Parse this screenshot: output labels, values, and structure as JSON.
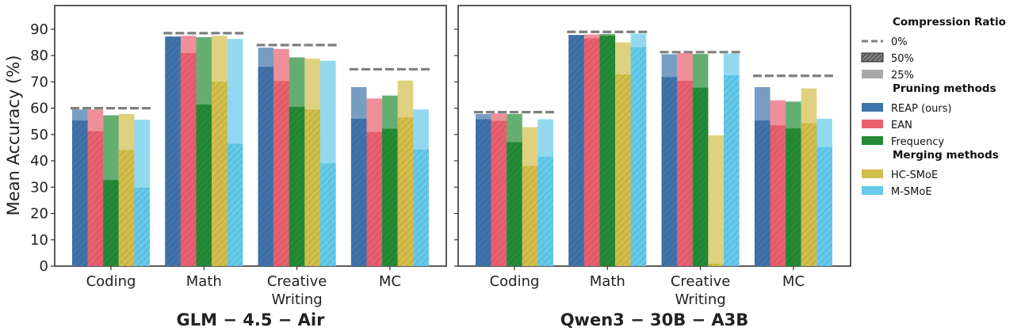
{
  "chart_data": {
    "type": "bar",
    "ylabel": "Mean Accuracy (%)",
    "ylim": [
      0,
      99
    ],
    "yticks": [
      0,
      10,
      20,
      30,
      40,
      50,
      60,
      70,
      80,
      90
    ],
    "categories": [
      "Coding",
      "Math",
      "Creative Writing",
      "MC"
    ],
    "category_lines": [
      [
        "Coding"
      ],
      [
        "Math"
      ],
      [
        "Creative",
        "Writing"
      ],
      [
        "MC"
      ]
    ],
    "methods": [
      {
        "name": "REAP (ours)",
        "color": "#3f73aa"
      },
      {
        "name": "EAN",
        "color": "#e8606f"
      },
      {
        "name": "Frequency",
        "color": "#238b36"
      },
      {
        "name": "HC-SMoE",
        "color": "#d2be4a"
      },
      {
        "name": "M-SMoE",
        "color": "#64c9ea"
      }
    ],
    "panels": [
      {
        "title": "GLM − 4.5 − Air",
        "baseline_0pct": [
          60,
          88.5,
          84,
          74.8
        ],
        "ratio_25pct": [
          [
            59.5,
            59.5,
            57.3,
            57.8,
            55.6
          ],
          [
            87.2,
            87.5,
            87.0,
            87.5,
            86.3
          ],
          [
            83.0,
            82.5,
            79.3,
            78.8,
            78.0
          ],
          [
            68.0,
            63.7,
            64.8,
            70.5,
            59.5
          ]
        ],
        "ratio_50pct": [
          [
            55.3,
            51.3,
            32.7,
            44.1,
            29.8
          ],
          [
            87.2,
            80.9,
            61.4,
            70.0,
            46.5
          ],
          [
            75.7,
            70.3,
            60.5,
            59.5,
            39.0
          ],
          [
            56.0,
            51.0,
            52.2,
            56.5,
            44.3
          ]
        ]
      },
      {
        "title": "Qwen3 − 30B − A3B",
        "baseline_0pct": [
          58.5,
          89,
          81.3,
          72.3
        ],
        "ratio_25pct": [
          [
            57.8,
            58.0,
            57.8,
            52.8,
            55.8
          ],
          [
            87.8,
            88.0,
            88.2,
            85.0,
            88.3
          ],
          [
            80.5,
            80.9,
            80.6,
            49.7,
            80.7
          ],
          [
            68.0,
            63.0,
            62.5,
            67.5,
            56.0
          ]
        ],
        "ratio_50pct": [
          [
            55.8,
            55.2,
            47.1,
            38.1,
            41.5
          ],
          [
            87.8,
            86.5,
            87.5,
            72.8,
            83.2
          ],
          [
            71.8,
            70.4,
            67.8,
            0.9,
            72.5
          ],
          [
            55.3,
            53.5,
            52.3,
            54.3,
            45.2
          ]
        ]
      }
    ],
    "legend": {
      "ratio_title": "Compression Ratio",
      "ratio_items": [
        "0%",
        "50%",
        "25%"
      ],
      "pruning_title": "Pruning methods",
      "pruning_items": [
        "REAP (ours)",
        "EAN",
        "Frequency"
      ],
      "merging_title": "Merging methods",
      "merging_items": [
        "HC-SMoE",
        "M-SMoE"
      ]
    }
  }
}
